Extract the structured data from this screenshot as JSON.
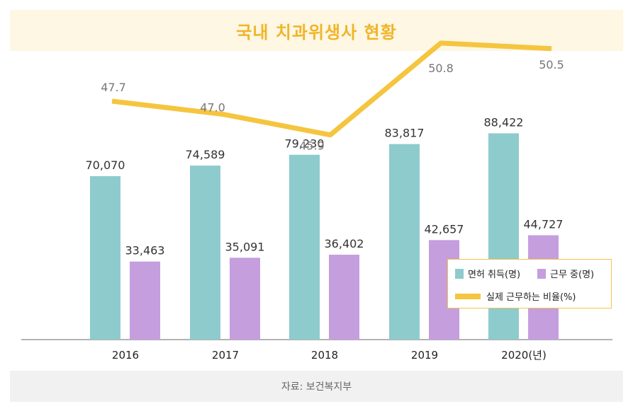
{
  "title": "국내 치과위생사 현황",
  "source": "자료: 보건복지부",
  "colors": {
    "licensed": "#8ecbcd",
    "employed": "#c59ede",
    "ratio": "#f5c53f",
    "title": "#f0b52a"
  },
  "chart_data": {
    "type": "bar",
    "categories": [
      "2016",
      "2017",
      "2018",
      "2019",
      "2020(년)"
    ],
    "series": [
      {
        "name": "면허 취득(명)",
        "values": [
          70070,
          74589,
          79230,
          83817,
          88422
        ]
      },
      {
        "name": "근무 중(명)",
        "values": [
          33463,
          35091,
          36402,
          42657,
          44727
        ]
      }
    ],
    "line_series": {
      "name": "실제 근무하는 비율(%)",
      "values": [
        47.7,
        47.0,
        45.9,
        50.8,
        50.5
      ]
    },
    "bar_labels": {
      "licensed": [
        "70,070",
        "74,589",
        "79,230",
        "83,817",
        "88,422"
      ],
      "employed": [
        "33,463",
        "35,091",
        "36,402",
        "42,657",
        "44,727"
      ],
      "ratio": [
        "47.7",
        "47.0",
        "45.9",
        "50.8",
        "50.5"
      ]
    },
    "legend": {
      "licensed": "면허 취득(명)",
      "employed": "근무 중(명)",
      "ratio": "실제 근무하는 비율(%)",
      "position": "bottom-right"
    },
    "grid": false
  }
}
